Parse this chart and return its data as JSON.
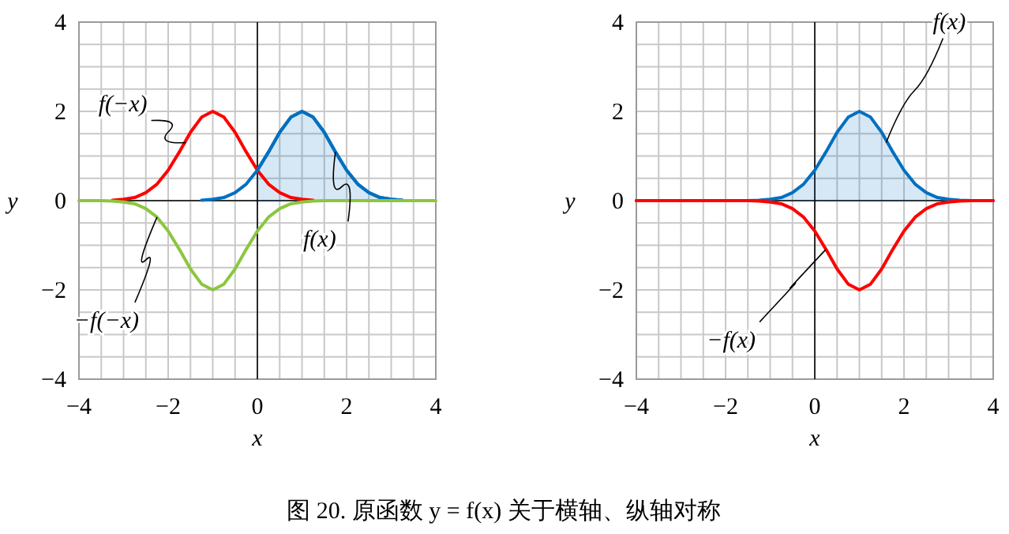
{
  "chart_data": [
    {
      "type": "line",
      "xlabel": "x",
      "ylabel": "y",
      "x": [
        -4,
        -3.75,
        -3.5,
        -3.25,
        -3,
        -2.75,
        -2.5,
        -2.25,
        -2,
        -1.75,
        -1.5,
        -1.25,
        -1,
        -0.75,
        -0.5,
        -0.25,
        0,
        0.25,
        0.5,
        0.75,
        1,
        1.25,
        1.5,
        1.75,
        2,
        2.25,
        2.5,
        2.75,
        3,
        3.25,
        3.5,
        3.75,
        4
      ],
      "series": [
        {
          "type": "area",
          "color": "#0070c0",
          "x": [
            0,
            0.25,
            0.5,
            0.75,
            1,
            1.25,
            1.5,
            1.75,
            2,
            2.25,
            2.5,
            2.75,
            3,
            3.25
          ],
          "values": [
            0.68,
            1.09,
            1.53,
            1.87,
            2,
            1.87,
            1.53,
            1.09,
            0.68,
            0.37,
            0.18,
            0.07,
            0.03,
            0.01
          ]
        },
        {
          "color": "#ff0000",
          "values": [
            null,
            null,
            null,
            0.01,
            0.03,
            0.07,
            0.18,
            0.37,
            0.68,
            1.09,
            1.53,
            1.87,
            2,
            1.87,
            1.53,
            1.09,
            0.68,
            0.37,
            0.18,
            0.07,
            0.03,
            0.01,
            null,
            null,
            null,
            null,
            null,
            null,
            null,
            null,
            null,
            null,
            null
          ]
        },
        {
          "color": "#0070c0",
          "values": [
            null,
            null,
            null,
            null,
            null,
            null,
            null,
            null,
            null,
            null,
            null,
            0.01,
            0.03,
            0.07,
            0.18,
            0.37,
            0.68,
            1.09,
            1.53,
            1.87,
            2,
            1.87,
            1.53,
            1.09,
            0.68,
            0.37,
            0.18,
            0.07,
            0.03,
            0.01,
            null,
            null,
            null
          ]
        },
        {
          "color": "#8cc63f",
          "values": [
            0,
            0,
            0,
            -0.01,
            -0.03,
            -0.07,
            -0.18,
            -0.37,
            -0.68,
            -1.09,
            -1.53,
            -1.87,
            -2,
            -1.87,
            -1.53,
            -1.09,
            -0.68,
            -0.37,
            -0.18,
            -0.07,
            -0.03,
            -0.01,
            0,
            0,
            0,
            0,
            0,
            0,
            0,
            0,
            0,
            0,
            0
          ]
        }
      ],
      "xlim": [
        -4,
        4
      ],
      "ylim": [
        -4,
        4
      ],
      "xticks": [
        {
          "value": -4,
          "label": "−4"
        },
        {
          "value": -3.5,
          "label": null
        },
        {
          "value": -3,
          "label": null
        },
        {
          "value": -2.5,
          "label": null
        },
        {
          "value": -2,
          "label": "−2"
        },
        {
          "value": -1.5,
          "label": null
        },
        {
          "value": -1,
          "label": null
        },
        {
          "value": -0.5,
          "label": null
        },
        0,
        {
          "value": 0.5,
          "label": null
        },
        {
          "value": 1,
          "label": null
        },
        {
          "value": 1.5,
          "label": null
        },
        2,
        {
          "value": 2.5,
          "label": null
        },
        {
          "value": 3,
          "label": null
        },
        {
          "value": 3.5,
          "label": null
        },
        4
      ],
      "yticks": [
        {
          "value": -4,
          "label": "−4"
        },
        {
          "value": -3.5,
          "label": null
        },
        {
          "value": -3,
          "label": null
        },
        {
          "value": -2.5,
          "label": null
        },
        {
          "value": -2,
          "label": "−2"
        },
        {
          "value": -1.5,
          "label": null
        },
        {
          "value": -1,
          "label": null
        },
        {
          "value": -0.5,
          "label": null
        },
        0,
        {
          "value": 0.5,
          "label": null
        },
        {
          "value": 1,
          "label": null
        },
        {
          "value": 1.5,
          "label": null
        },
        2,
        {
          "value": 2.5,
          "label": null
        },
        {
          "value": 3,
          "label": null
        },
        {
          "value": 3.5,
          "label": null
        },
        4
      ],
      "grid": true,
      "annotations": [
        {
          "text": "f(−x)",
          "x": -1.6,
          "y": 1.3
        },
        {
          "text": "f(x)",
          "x": 1.75,
          "y": 1.09
        },
        {
          "text": "−f(−x)",
          "x": -2.25,
          "y": -0.37
        },
        "图 20. 原函数 y = f(x) 关于横轴、纵轴对称"
      ]
    },
    {
      "type": "line",
      "xlabel": "x",
      "ylabel": "y",
      "x": [
        -4,
        -3.75,
        -3.5,
        -3.25,
        -3,
        -2.75,
        -2.5,
        -2.25,
        -2,
        -1.75,
        -1.5,
        -1.25,
        -1,
        -0.75,
        -0.5,
        -0.25,
        0,
        0.25,
        0.5,
        0.75,
        1,
        1.25,
        1.5,
        1.75,
        2,
        2.25,
        2.5,
        2.75,
        3,
        3.25,
        3.5,
        3.75,
        4
      ],
      "series": [
        {
          "type": "area",
          "color": "#0070c0",
          "values": [
            0,
            0,
            0,
            0,
            0,
            0,
            0,
            0,
            0,
            0,
            0,
            0.01,
            0.03,
            0.07,
            0.18,
            0.37,
            0.68,
            1.09,
            1.53,
            1.87,
            2,
            1.87,
            1.53,
            1.09,
            0.68,
            0.37,
            0.18,
            0.07,
            0.03,
            0.01,
            0,
            0,
            0
          ]
        },
        {
          "color": "#ff0000",
          "values": [
            0,
            0,
            0,
            0,
            0,
            0,
            0,
            0,
            0,
            0,
            0,
            -0.01,
            -0.03,
            -0.07,
            -0.18,
            -0.37,
            -0.68,
            -1.09,
            -1.53,
            -1.87,
            -2,
            -1.87,
            -1.53,
            -1.09,
            -0.68,
            -0.37,
            -0.18,
            -0.07,
            -0.03,
            -0.01,
            0,
            0,
            0
          ]
        }
      ],
      "xlim": [
        -4,
        4
      ],
      "ylim": [
        -4,
        4
      ],
      "xticks": [
        {
          "value": -4,
          "label": "−4"
        },
        {
          "value": -3.5,
          "label": null
        },
        {
          "value": -3,
          "label": null
        },
        {
          "value": -2.5,
          "label": null
        },
        {
          "value": -2,
          "label": "−2"
        },
        {
          "value": -1.5,
          "label": null
        },
        {
          "value": -1,
          "label": null
        },
        {
          "value": -0.5,
          "label": null
        },
        0,
        {
          "value": 0.5,
          "label": null
        },
        {
          "value": 1,
          "label": null
        },
        {
          "value": 1.5,
          "label": null
        },
        2,
        {
          "value": 2.5,
          "label": null
        },
        {
          "value": 3,
          "label": null
        },
        {
          "value": 3.5,
          "label": null
        },
        4
      ],
      "yticks": [
        {
          "value": -4,
          "label": "−4"
        },
        {
          "value": -3.5,
          "label": null
        },
        {
          "value": -3,
          "label": null
        },
        {
          "value": -2.5,
          "label": null
        },
        {
          "value": -2,
          "label": "−2"
        },
        {
          "value": -1.5,
          "label": null
        },
        {
          "value": -1,
          "label": null
        },
        {
          "value": -0.5,
          "label": null
        },
        0,
        {
          "value": 0.5,
          "label": null
        },
        {
          "value": 1,
          "label": null
        },
        {
          "value": 1.5,
          "label": null
        },
        2,
        {
          "value": 2.5,
          "label": null
        },
        {
          "value": 3,
          "label": null
        },
        {
          "value": 3.5,
          "label": null
        },
        4
      ],
      "grid": true,
      "annotations": [
        {
          "text": "f(x)",
          "x": 1.6,
          "y": 1.3
        },
        {
          "text": "−f(x)",
          "x": 0.25,
          "y": -1.09
        }
      ]
    }
  ]
}
